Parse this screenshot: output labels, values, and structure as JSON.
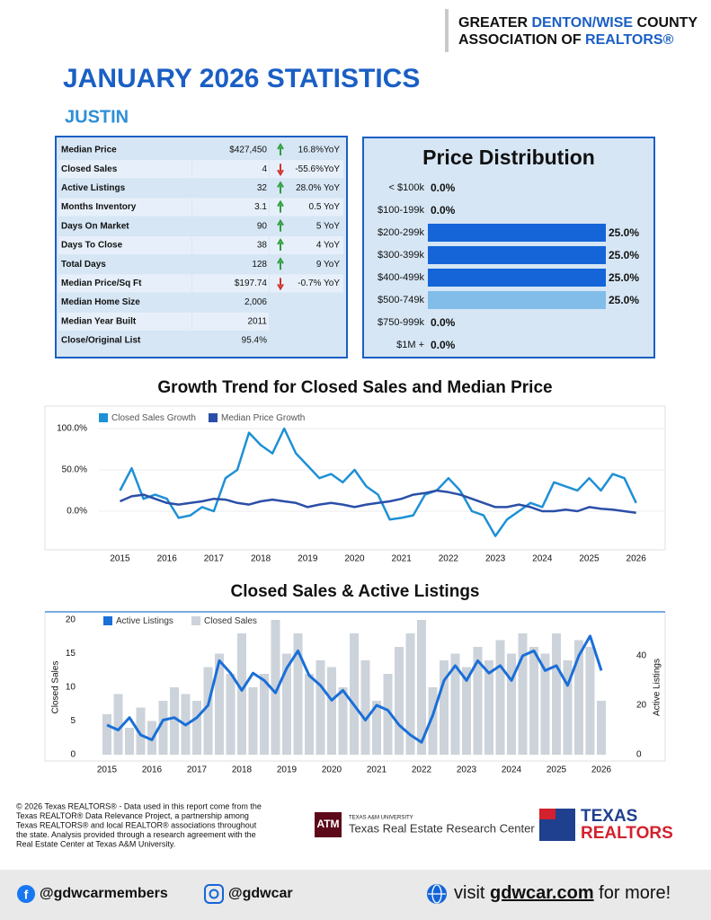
{
  "header": {
    "org_line1": [
      "GREATER ",
      "DENTON/WISE",
      " COUNTY"
    ],
    "org_line2": [
      "ASSOCIATION OF ",
      "REALTORS®"
    ],
    "title": "JANUARY 2026 STATISTICS",
    "city": "JUSTIN"
  },
  "table": {
    "rows": [
      {
        "label": "Median Price",
        "value": "$427,450",
        "trend": "up",
        "change": "16.8%YoY"
      },
      {
        "label": "Closed Sales",
        "value": "4",
        "trend": "down",
        "change": "-55.6%YoY"
      },
      {
        "label": "Active Listings",
        "value": "32",
        "trend": "up",
        "change": "28.0% YoY"
      },
      {
        "label": "Months Inventory",
        "value": "3.1",
        "trend": "up",
        "change": "0.5 YoY"
      },
      {
        "label": "Days On Market",
        "value": "90",
        "trend": "up",
        "change": "5 YoY"
      },
      {
        "label": "Days To Close",
        "value": "38",
        "trend": "up",
        "change": "4 YoY"
      },
      {
        "label": "Total Days",
        "value": "128",
        "trend": "up",
        "change": "9 YoY"
      },
      {
        "label": "Median Price/Sq Ft",
        "value": "$197.74",
        "trend": "down",
        "change": "-0.7% YoY"
      },
      {
        "label": "Median Home Size",
        "value": "2,006"
      },
      {
        "label": "Median Year Built",
        "value": "2011"
      },
      {
        "label": "Close/Original List",
        "value": "95.4%"
      }
    ]
  },
  "chart_data": [
    {
      "type": "barh",
      "title": "Price Distribution",
      "categories": [
        "< $100k",
        "$100-199k",
        "$200-299k",
        "$300-399k",
        "$400-499k",
        "$500-749k",
        "$750-999k",
        "$1M +"
      ],
      "values": [
        0,
        0,
        25,
        25,
        25,
        25,
        0,
        0
      ],
      "value_labels": [
        "0.0%",
        "0.0%",
        "25.0%",
        "25.0%",
        "25.0%",
        "25.0%",
        "0.0%",
        "0.0%"
      ],
      "colors": [
        "#1565d8",
        "#1565d8",
        "#1565d8",
        "#1565d8",
        "#1565d8",
        "#82bdea",
        "#1565d8",
        "#1565d8"
      ],
      "xlim": [
        0,
        25
      ]
    },
    {
      "type": "line",
      "title": "Growth Trend for Closed Sales and Median Price",
      "x": [
        2015,
        2015.25,
        2015.5,
        2015.75,
        2016,
        2016.25,
        2016.5,
        2016.75,
        2017,
        2017.25,
        2017.5,
        2017.75,
        2018,
        2018.25,
        2018.5,
        2018.75,
        2019,
        2019.25,
        2019.5,
        2019.75,
        2020,
        2020.25,
        2020.5,
        2020.75,
        2021,
        2021.25,
        2021.5,
        2021.75,
        2022,
        2022.25,
        2022.5,
        2022.75,
        2023,
        2023.25,
        2023.5,
        2023.75,
        2024,
        2024.25,
        2024.5,
        2024.75,
        2025,
        2025.25,
        2025.5,
        2025.75,
        2026
      ],
      "series": [
        {
          "name": "Closed Sales Growth",
          "color": "#1e90d6",
          "values": [
            25,
            52,
            15,
            20,
            15,
            -8,
            -5,
            5,
            0,
            40,
            50,
            95,
            80,
            70,
            100,
            70,
            55,
            40,
            45,
            35,
            50,
            30,
            20,
            -10,
            -8,
            -5,
            20,
            25,
            40,
            25,
            0,
            -5,
            -30,
            -10,
            0,
            10,
            5,
            35,
            30,
            25,
            40,
            25,
            45,
            40,
            10
          ]
        },
        {
          "name": "Median Price Growth",
          "color": "#2b4fa8",
          "values": [
            12,
            18,
            20,
            15,
            10,
            8,
            10,
            12,
            15,
            14,
            10,
            8,
            12,
            14,
            12,
            10,
            5,
            8,
            10,
            8,
            5,
            8,
            10,
            12,
            15,
            20,
            22,
            25,
            23,
            20,
            15,
            10,
            5,
            5,
            8,
            5,
            0,
            0,
            2,
            0,
            5,
            3,
            2,
            0,
            -2
          ]
        }
      ],
      "xlim": [
        2014.55,
        2026.6
      ],
      "xticks": [
        2015,
        2016,
        2017,
        2018,
        2019,
        2020,
        2021,
        2022,
        2023,
        2024,
        2025,
        2026
      ],
      "ylim": [
        -40,
        120
      ],
      "yticks": [
        {
          "value": 0,
          "label": "0.0%"
        },
        {
          "value": 50,
          "label": "50.0%"
        },
        {
          "value": 100,
          "label": "100.0%"
        }
      ],
      "grid": true
    },
    {
      "type": "combo",
      "title": "Closed Sales & Active Listings",
      "x": [
        2015,
        2015.25,
        2015.5,
        2015.75,
        2016,
        2016.25,
        2016.5,
        2016.75,
        2017,
        2017.25,
        2017.5,
        2017.75,
        2018,
        2018.25,
        2018.5,
        2018.75,
        2019,
        2019.25,
        2019.5,
        2019.75,
        2020,
        2020.25,
        2020.5,
        2020.75,
        2021,
        2021.25,
        2021.5,
        2021.75,
        2022,
        2022.25,
        2022.5,
        2022.75,
        2023,
        2023.25,
        2023.5,
        2023.75,
        2024,
        2024.25,
        2024.5,
        2024.75,
        2025,
        2025.25,
        2025.5,
        2025.75,
        2026
      ],
      "series": [
        {
          "name": "Active Listings",
          "color": "#1a6fd8",
          "axis": "y2",
          "values": [
            12,
            10,
            15,
            8,
            6,
            14,
            15,
            12,
            15,
            20,
            38,
            33,
            26,
            33,
            30,
            25,
            35,
            42,
            32,
            28,
            22,
            26,
            20,
            14,
            20,
            18,
            12,
            8,
            5,
            16,
            30,
            36,
            30,
            38,
            33,
            36,
            30,
            40,
            42,
            34,
            36,
            28,
            40,
            48,
            34
          ]
        },
        {
          "name": "Closed Sales",
          "color": "#cdd3da",
          "values": [
            6,
            9,
            4,
            7,
            5,
            8,
            10,
            9,
            8,
            13,
            15,
            12,
            18,
            10,
            12,
            20,
            15,
            18,
            12,
            14,
            13,
            10,
            18,
            14,
            8,
            12,
            16,
            18,
            20,
            10,
            14,
            15,
            13,
            16,
            14,
            17,
            15,
            18,
            16,
            15,
            18,
            14,
            17,
            16,
            8
          ]
        }
      ],
      "ylabel": "Closed Sales",
      "y2label": "Active Listings",
      "xlim": [
        2014.62,
        2026.42
      ],
      "xticks": [
        2015,
        2016,
        2017,
        2018,
        2019,
        2020,
        2021,
        2022,
        2023,
        2024,
        2025,
        2026
      ],
      "ylim": [
        0,
        20
      ],
      "yticks": [
        0,
        5,
        10,
        15,
        20
      ],
      "y2lim": [
        0,
        54.5
      ],
      "y2ticks": [
        0,
        20,
        40
      ]
    }
  ],
  "footer": {
    "disclaimer": [
      "© 2026 Texas REALTORS® - Data used in this report come from the",
      "Texas REALTOR® Data Relevance Project, a partnership among",
      "Texas REALTORS® and local REALTOR® associations throughout",
      "the state. Analysis provided through a research agreement with the",
      "Real Estate Center at Texas A&M University."
    ],
    "tamu_small": "TEXAS A&M UNIVERSITY",
    "tamu_name": "Texas Real Estate Research Center",
    "realtors": [
      "TEXAS",
      "REALTORS"
    ]
  },
  "social": {
    "facebook": "@gdwcarmembers",
    "instagram": "@gdwcar",
    "visit": [
      "visit ",
      "gdwcar.com",
      " for more!"
    ]
  }
}
